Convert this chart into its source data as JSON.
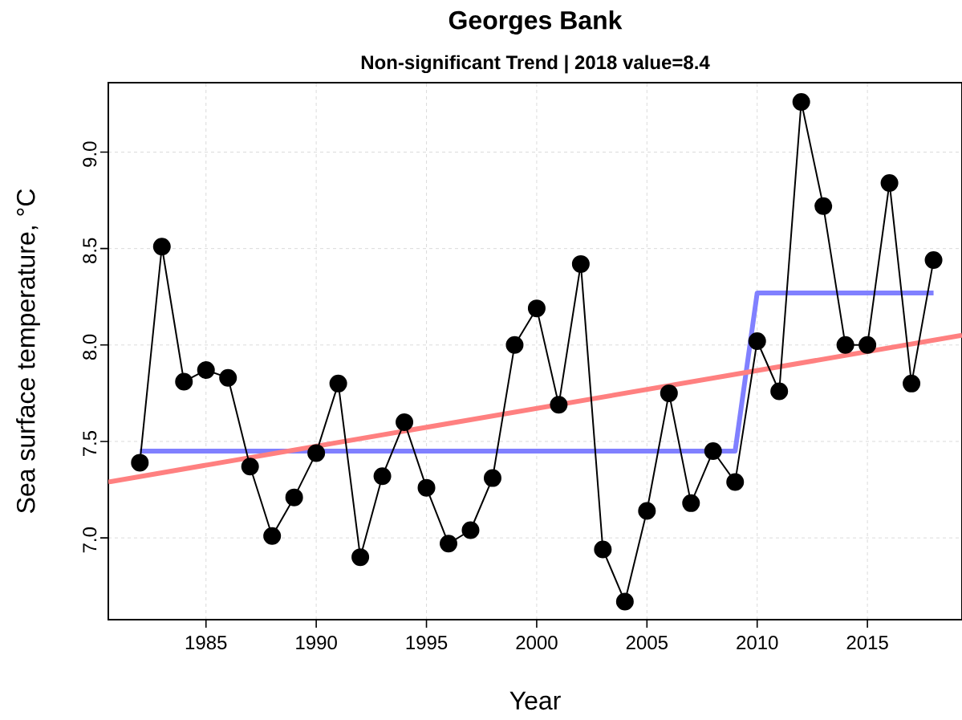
{
  "chart_data": {
    "type": "line",
    "title": "Georges Bank",
    "subtitle": "Non-significant Trend | 2018 value=8.4",
    "xlabel": "Year",
    "ylabel": "Sea surface temperature, °C",
    "x": [
      1982,
      1983,
      1984,
      1985,
      1986,
      1987,
      1988,
      1989,
      1990,
      1991,
      1992,
      1993,
      1994,
      1995,
      1996,
      1997,
      1998,
      1999,
      2000,
      2001,
      2002,
      2003,
      2004,
      2005,
      2006,
      2007,
      2008,
      2009,
      2010,
      2011,
      2012,
      2013,
      2014,
      2015,
      2016,
      2017,
      2018
    ],
    "series": [
      {
        "x": [
          1982,
          2009,
          2010,
          2018
        ],
        "values": [
          7.45,
          7.45,
          8.27,
          8.27
        ],
        "color": "#8080ff"
      },
      {
        "x": [
          1980.57,
          2019.29
        ],
        "values": [
          7.29,
          8.05
        ],
        "color": "#ff8080"
      },
      {
        "color": "#000000",
        "marker": "circle",
        "line_style": "solid",
        "values": [
          7.39,
          8.51,
          7.81,
          7.87,
          7.83,
          7.37,
          7.01,
          7.21,
          7.44,
          7.8,
          6.9,
          7.32,
          7.6,
          7.26,
          6.97,
          7.04,
          7.31,
          8.0,
          8.19,
          7.69,
          8.42,
          6.94,
          6.67,
          7.14,
          7.75,
          7.18,
          7.45,
          7.29,
          8.02,
          7.76,
          9.26,
          8.72,
          8.0,
          8.0,
          8.84,
          7.8,
          8.44
        ]
      }
    ],
    "xlim": [
      1980.57,
      2019.29
    ],
    "ylim": [
      6.576,
      9.36
    ],
    "xticks": [
      1985,
      1990,
      1995,
      2000,
      2005,
      2010,
      2015
    ],
    "yticks": [
      {
        "value": 7,
        "label": "7.0"
      },
      {
        "value": 7.5,
        "label": "7.5"
      },
      {
        "value": 8,
        "label": "8.0"
      },
      {
        "value": 8.5,
        "label": "8.5"
      },
      {
        "value": 9,
        "label": "9.0"
      }
    ],
    "grid": true
  }
}
